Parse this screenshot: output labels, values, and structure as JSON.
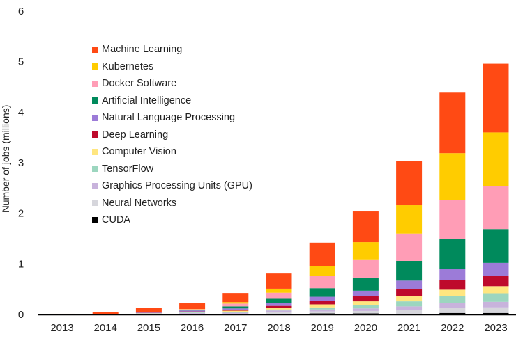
{
  "chart_data": {
    "type": "bar",
    "stacked": true,
    "title": "",
    "xlabel": "",
    "ylabel": "Number of jobs (millions)",
    "ylim": [
      0,
      6
    ],
    "yticks": [
      0,
      1,
      2,
      3,
      4,
      5,
      6
    ],
    "grid": false,
    "legend_placement": "top-left",
    "categories": [
      "2013",
      "2014",
      "2015",
      "2016",
      "2017",
      "2018",
      "2019",
      "2020",
      "2021",
      "2022",
      "2023"
    ],
    "series": [
      {
        "name": "CUDA",
        "color": "#000000",
        "values": [
          0,
          0,
          0,
          0,
          0.005,
          0.01,
          0.02,
          0.02,
          0.01,
          0.03,
          0.03
        ]
      },
      {
        "name": "Neural Networks",
        "color": "#D6D6DC",
        "values": [
          0,
          0.002,
          0.01,
          0.015,
          0.01,
          0.04,
          0.04,
          0.05,
          0.08,
          0.1,
          0.11
        ]
      },
      {
        "name": "Graphics Processing Units (GPU)",
        "color": "#C8B3DC",
        "values": [
          0,
          0.002,
          0.01,
          0.015,
          0.02,
          0.03,
          0.04,
          0.05,
          0.07,
          0.1,
          0.11
        ]
      },
      {
        "name": "TensorFlow",
        "color": "#9CD6BF",
        "values": [
          0,
          0,
          0.005,
          0.01,
          0.01,
          0.02,
          0.04,
          0.07,
          0.1,
          0.14,
          0.17
        ]
      },
      {
        "name": "Computer Vision",
        "color": "#FFE680",
        "values": [
          0,
          0.002,
          0.005,
          0.01,
          0.03,
          0.03,
          0.06,
          0.07,
          0.1,
          0.12,
          0.14
        ]
      },
      {
        "name": "Deep Learning",
        "color": "#BE0A2C",
        "values": [
          0,
          0.001,
          0.005,
          0.01,
          0.015,
          0.04,
          0.07,
          0.1,
          0.14,
          0.19,
          0.21
        ]
      },
      {
        "name": "Natural Language Processing",
        "color": "#9C7BD8",
        "values": [
          0.002,
          0.003,
          0.01,
          0.02,
          0.03,
          0.06,
          0.08,
          0.11,
          0.17,
          0.22,
          0.25
        ]
      },
      {
        "name": "Artificial Intelligence",
        "color": "#008A5C",
        "values": [
          0.001,
          0.002,
          0.005,
          0.015,
          0.04,
          0.08,
          0.17,
          0.26,
          0.39,
          0.59,
          0.67
        ]
      },
      {
        "name": "Docker Software",
        "color": "#FF9DB6",
        "values": [
          0.001,
          0.002,
          0.005,
          0.01,
          0.055,
          0.12,
          0.24,
          0.36,
          0.54,
          0.78,
          0.85
        ]
      },
      {
        "name": "Kubernetes",
        "color": "#FFCC00",
        "values": [
          0,
          0,
          0,
          0.005,
          0.03,
          0.08,
          0.19,
          0.34,
          0.56,
          0.92,
          1.06
        ]
      },
      {
        "name": "Machine Learning",
        "color": "#FF4A14",
        "values": [
          0.01,
          0.03,
          0.07,
          0.11,
          0.18,
          0.3,
          0.47,
          0.62,
          0.87,
          1.21,
          1.36
        ]
      }
    ]
  }
}
